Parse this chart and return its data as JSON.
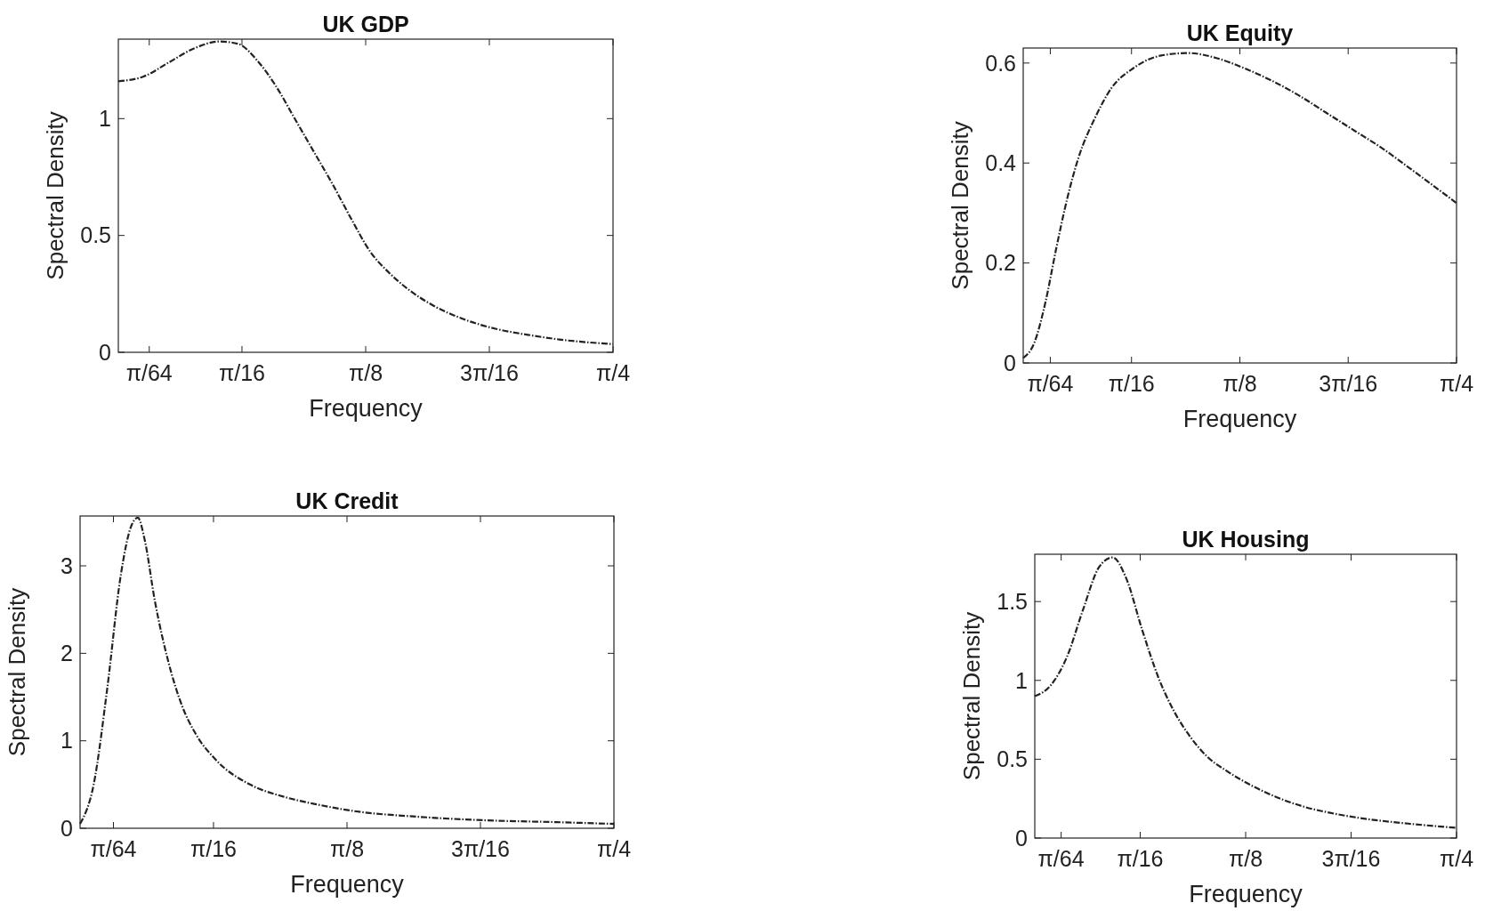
{
  "chart_data": [
    {
      "type": "line",
      "title": "UK GDP",
      "xlabel": "Frequency",
      "ylabel": "Spectral Density",
      "xlim": [
        0,
        0.7854
      ],
      "ylim": [
        0,
        1.34
      ],
      "yticks": [
        0,
        0.5,
        1
      ],
      "xticks": [
        {
          "value": 0.0491,
          "label": "π/64"
        },
        {
          "value": 0.1963,
          "label": "π/16"
        },
        {
          "value": 0.3927,
          "label": "π/8"
        },
        {
          "value": 0.589,
          "label": "3π/16"
        },
        {
          "value": 0.7854,
          "label": "π/4"
        }
      ],
      "grid": false,
      "line_style": "dashed",
      "series": [
        {
          "color": "#222222",
          "x": [
            0,
            0.04,
            0.08,
            0.12,
            0.16,
            0.19,
            0.22,
            0.25,
            0.28,
            0.31,
            0.34,
            0.37,
            0.4,
            0.43,
            0.46,
            0.5,
            0.55,
            0.6,
            0.65,
            0.7,
            0.7854
          ],
          "values": [
            1.16,
            1.18,
            1.24,
            1.3,
            1.33,
            1.32,
            1.25,
            1.14,
            1.0,
            0.86,
            0.72,
            0.57,
            0.43,
            0.34,
            0.27,
            0.2,
            0.14,
            0.1,
            0.075,
            0.055,
            0.035
          ]
        }
      ]
    },
    {
      "type": "line",
      "title": "UK Equity",
      "xlabel": "Frequency",
      "ylabel": "Spectral Density",
      "xlim": [
        0,
        0.7854
      ],
      "ylim": [
        0,
        0.63
      ],
      "yticks": [
        0,
        0.2,
        0.4,
        0.6
      ],
      "xticks": [
        {
          "value": 0.0491,
          "label": "π/64"
        },
        {
          "value": 0.1963,
          "label": "π/16"
        },
        {
          "value": 0.3927,
          "label": "π/8"
        },
        {
          "value": 0.589,
          "label": "3π/16"
        },
        {
          "value": 0.7854,
          "label": "π/4"
        }
      ],
      "grid": false,
      "line_style": "dashed",
      "series": [
        {
          "color": "#222222",
          "x": [
            0,
            0.02,
            0.04,
            0.06,
            0.08,
            0.1,
            0.13,
            0.16,
            0.2,
            0.25,
            0.3,
            0.35,
            0.4,
            0.45,
            0.5,
            0.55,
            0.6,
            0.65,
            0.7,
            0.7854
          ],
          "values": [
            0.01,
            0.04,
            0.12,
            0.23,
            0.33,
            0.41,
            0.49,
            0.55,
            0.59,
            0.615,
            0.62,
            0.61,
            0.59,
            0.565,
            0.535,
            0.5,
            0.465,
            0.43,
            0.39,
            0.32
          ]
        }
      ]
    },
    {
      "type": "line",
      "title": "UK Credit",
      "xlabel": "Frequency",
      "ylabel": "Spectral Density",
      "xlim": [
        0,
        0.7854
      ],
      "ylim": [
        0,
        3.57
      ],
      "yticks": [
        0,
        1,
        2,
        3
      ],
      "xticks": [
        {
          "value": 0.0491,
          "label": "π/64"
        },
        {
          "value": 0.1963,
          "label": "π/16"
        },
        {
          "value": 0.3927,
          "label": "π/8"
        },
        {
          "value": 0.589,
          "label": "3π/16"
        },
        {
          "value": 0.7854,
          "label": "π/4"
        }
      ],
      "grid": false,
      "line_style": "dashed",
      "series": [
        {
          "color": "#222222",
          "x": [
            0,
            0.02,
            0.04,
            0.06,
            0.075,
            0.085,
            0.095,
            0.11,
            0.13,
            0.15,
            0.17,
            0.2,
            0.25,
            0.3,
            0.35,
            0.4,
            0.5,
            0.6,
            0.7,
            0.7854
          ],
          "values": [
            0.05,
            0.5,
            1.6,
            2.9,
            3.45,
            3.55,
            3.3,
            2.6,
            1.9,
            1.4,
            1.08,
            0.78,
            0.5,
            0.36,
            0.27,
            0.2,
            0.13,
            0.09,
            0.07,
            0.05
          ]
        }
      ]
    },
    {
      "type": "line",
      "title": "UK Housing",
      "xlabel": "Frequency",
      "ylabel": "Spectral Density",
      "xlim": [
        0,
        0.7854
      ],
      "ylim": [
        0,
        1.8
      ],
      "yticks": [
        0,
        0.5,
        1,
        1.5
      ],
      "xticks": [
        {
          "value": 0.0491,
          "label": "π/64"
        },
        {
          "value": 0.1963,
          "label": "π/16"
        },
        {
          "value": 0.3927,
          "label": "π/8"
        },
        {
          "value": 0.589,
          "label": "3π/16"
        },
        {
          "value": 0.7854,
          "label": "π/4"
        }
      ],
      "grid": false,
      "line_style": "dashed",
      "series": [
        {
          "color": "#222222",
          "x": [
            0,
            0.03,
            0.06,
            0.09,
            0.12,
            0.145,
            0.17,
            0.2,
            0.23,
            0.26,
            0.29,
            0.32,
            0.36,
            0.4,
            0.45,
            0.5,
            0.55,
            0.6,
            0.7,
            0.7854
          ],
          "values": [
            0.9,
            0.97,
            1.15,
            1.45,
            1.72,
            1.78,
            1.65,
            1.32,
            1.02,
            0.8,
            0.64,
            0.52,
            0.42,
            0.34,
            0.26,
            0.2,
            0.16,
            0.13,
            0.09,
            0.065
          ]
        }
      ]
    }
  ]
}
